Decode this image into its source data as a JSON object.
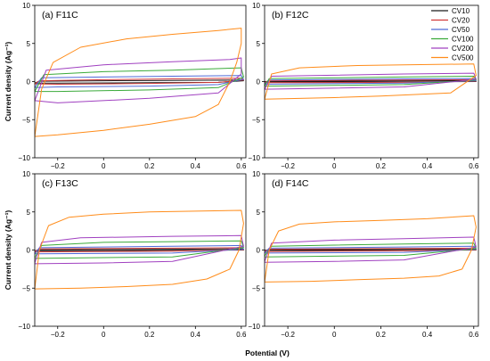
{
  "figure": {
    "xlabel": "Potential (V)",
    "ylabel": "Current density (Ag⁻¹)"
  },
  "legend": {
    "position": "top-right",
    "entries": [
      {
        "name": "CV10",
        "color": "#1a1a1a"
      },
      {
        "name": "CV20",
        "color": "#d23b3b"
      },
      {
        "name": "CV50",
        "color": "#4f6ad8"
      },
      {
        "name": "CV100",
        "color": "#3aaa3a"
      },
      {
        "name": "CV200",
        "color": "#a040c0"
      },
      {
        "name": "CV500",
        "color": "#ff8c1a"
      }
    ]
  },
  "chart_data": [
    {
      "type": "line",
      "title": "(a) F11C",
      "xlabel": "",
      "ylabel": "Current density (Ag⁻¹)",
      "xlim": [
        -0.3,
        0.62
      ],
      "ylim": [
        -10,
        10
      ],
      "xticks": [
        "-0.2",
        "0",
        "0.2",
        "0.4",
        "0.6"
      ],
      "yticks": [
        "-10",
        "-5",
        "0",
        "5",
        "10"
      ],
      "series": [
        {
          "name": "CV10",
          "loop": [
            [
              -0.3,
              -0.2
            ],
            [
              -0.28,
              0.05
            ],
            [
              0.0,
              0.1
            ],
            [
              0.3,
              0.15
            ],
            [
              0.6,
              0.2
            ],
            [
              0.61,
              0.1
            ],
            [
              0.5,
              -0.1
            ],
            [
              0.2,
              -0.15
            ],
            [
              -0.2,
              -0.2
            ]
          ]
        },
        {
          "name": "CV20",
          "loop": [
            [
              -0.3,
              -0.3
            ],
            [
              -0.28,
              0.1
            ],
            [
              0.0,
              0.25
            ],
            [
              0.3,
              0.35
            ],
            [
              0.6,
              0.45
            ],
            [
              0.61,
              0.2
            ],
            [
              0.5,
              -0.1
            ],
            [
              0.2,
              -0.25
            ],
            [
              -0.2,
              -0.35
            ]
          ]
        },
        {
          "name": "CV50",
          "loop": [
            [
              -0.3,
              -0.8
            ],
            [
              -0.27,
              0.5
            ],
            [
              0.0,
              0.6
            ],
            [
              0.3,
              0.7
            ],
            [
              0.6,
              0.8
            ],
            [
              0.61,
              0.3
            ],
            [
              0.5,
              -0.4
            ],
            [
              0.2,
              -0.6
            ],
            [
              -0.2,
              -0.7
            ]
          ]
        },
        {
          "name": "CV100",
          "loop": [
            [
              -0.3,
              -1.3
            ],
            [
              -0.26,
              0.9
            ],
            [
              0.0,
              1.3
            ],
            [
              0.3,
              1.5
            ],
            [
              0.6,
              1.8
            ],
            [
              0.61,
              0.6
            ],
            [
              0.5,
              -0.8
            ],
            [
              0.2,
              -1.1
            ],
            [
              -0.2,
              -1.3
            ]
          ]
        },
        {
          "name": "CV200",
          "loop": [
            [
              -0.3,
              -2.5
            ],
            [
              -0.25,
              1.5
            ],
            [
              0.0,
              2.2
            ],
            [
              0.3,
              2.6
            ],
            [
              0.55,
              2.9
            ],
            [
              0.6,
              3.1
            ],
            [
              0.6,
              1.0
            ],
            [
              0.5,
              -1.5
            ],
            [
              0.2,
              -2.2
            ],
            [
              -0.2,
              -2.8
            ]
          ]
        },
        {
          "name": "CV500",
          "loop": [
            [
              -0.3,
              -7.2
            ],
            [
              -0.27,
              -1.0
            ],
            [
              -0.22,
              2.5
            ],
            [
              -0.1,
              4.5
            ],
            [
              0.1,
              5.6
            ],
            [
              0.3,
              6.2
            ],
            [
              0.5,
              6.7
            ],
            [
              0.6,
              7.0
            ],
            [
              0.6,
              5.0
            ],
            [
              0.58,
              2.5
            ],
            [
              0.55,
              0.0
            ],
            [
              0.5,
              -3.0
            ],
            [
              0.4,
              -4.6
            ],
            [
              0.2,
              -5.6
            ],
            [
              0.0,
              -6.4
            ],
            [
              -0.2,
              -7.0
            ],
            [
              -0.3,
              -7.2
            ]
          ]
        }
      ]
    },
    {
      "type": "line",
      "title": "(b) F12C",
      "xlabel": "",
      "ylabel": "",
      "xlim": [
        -0.3,
        0.62
      ],
      "ylim": [
        -10,
        10
      ],
      "xticks": [
        "-0.2",
        "0",
        "0.2",
        "0.4",
        "0.6"
      ],
      "yticks": [
        "-10",
        "-5",
        "0",
        "5",
        "10"
      ],
      "series": [
        {
          "name": "CV10",
          "loop": [
            [
              -0.3,
              0.0
            ],
            [
              -0.28,
              0.05
            ],
            [
              0.3,
              0.1
            ],
            [
              0.6,
              0.12
            ],
            [
              0.61,
              0.0
            ],
            [
              0.3,
              -0.05
            ],
            [
              -0.3,
              -0.05
            ]
          ]
        },
        {
          "name": "CV20",
          "loop": [
            [
              -0.3,
              -0.1
            ],
            [
              -0.28,
              0.1
            ],
            [
              0.3,
              0.2
            ],
            [
              0.6,
              0.25
            ],
            [
              0.61,
              0.05
            ],
            [
              0.3,
              -0.1
            ],
            [
              -0.3,
              -0.15
            ]
          ]
        },
        {
          "name": "CV50",
          "loop": [
            [
              -0.3,
              -0.3
            ],
            [
              -0.28,
              0.2
            ],
            [
              0.3,
              0.35
            ],
            [
              0.6,
              0.4
            ],
            [
              0.61,
              0.1
            ],
            [
              0.3,
              -0.2
            ],
            [
              -0.3,
              -0.35
            ]
          ]
        },
        {
          "name": "CV100",
          "loop": [
            [
              -0.3,
              -0.6
            ],
            [
              -0.28,
              0.4
            ],
            [
              0.3,
              0.6
            ],
            [
              0.6,
              0.7
            ],
            [
              0.61,
              0.2
            ],
            [
              0.3,
              -0.4
            ],
            [
              -0.3,
              -0.6
            ]
          ]
        },
        {
          "name": "CV200",
          "loop": [
            [
              -0.3,
              -1.0
            ],
            [
              -0.27,
              0.7
            ],
            [
              0.3,
              1.0
            ],
            [
              0.6,
              1.1
            ],
            [
              0.61,
              0.3
            ],
            [
              0.3,
              -0.7
            ],
            [
              -0.3,
              -1.0
            ]
          ]
        },
        {
          "name": "CV500",
          "loop": [
            [
              -0.3,
              -2.3
            ],
            [
              -0.27,
              1.0
            ],
            [
              -0.15,
              1.8
            ],
            [
              0.1,
              2.1
            ],
            [
              0.3,
              2.2
            ],
            [
              0.6,
              2.3
            ],
            [
              0.61,
              0.8
            ],
            [
              0.5,
              -1.5
            ],
            [
              0.2,
              -1.9
            ],
            [
              0.0,
              -2.1
            ],
            [
              -0.3,
              -2.3
            ]
          ]
        }
      ]
    },
    {
      "type": "line",
      "title": "(c) F13C",
      "xlabel": "",
      "ylabel": "Current density (Ag⁻¹)",
      "xlim": [
        -0.3,
        0.62
      ],
      "ylim": [
        -10,
        10
      ],
      "xticks": [
        "-0.2",
        "0",
        "0.2",
        "0.4",
        "0.6"
      ],
      "yticks": [
        "-10",
        "-5",
        "0",
        "5",
        "10"
      ],
      "series": [
        {
          "name": "CV10",
          "loop": [
            [
              -0.3,
              -0.1
            ],
            [
              -0.28,
              0.05
            ],
            [
              0.3,
              0.1
            ],
            [
              0.6,
              0.15
            ],
            [
              0.61,
              0.0
            ],
            [
              0.3,
              -0.05
            ],
            [
              -0.3,
              -0.1
            ]
          ]
        },
        {
          "name": "CV20",
          "loop": [
            [
              -0.3,
              -0.2
            ],
            [
              -0.28,
              0.15
            ],
            [
              0.3,
              0.25
            ],
            [
              0.6,
              0.3
            ],
            [
              0.61,
              0.05
            ],
            [
              0.3,
              -0.15
            ],
            [
              -0.3,
              -0.25
            ]
          ]
        },
        {
          "name": "CV50",
          "loop": [
            [
              -0.3,
              -0.5
            ],
            [
              -0.28,
              0.3
            ],
            [
              0.3,
              0.5
            ],
            [
              0.6,
              0.6
            ],
            [
              0.61,
              0.1
            ],
            [
              0.3,
              -0.4
            ],
            [
              -0.3,
              -0.5
            ]
          ]
        },
        {
          "name": "CV100",
          "loop": [
            [
              -0.3,
              -1.0
            ],
            [
              -0.27,
              0.6
            ],
            [
              0.0,
              1.0
            ],
            [
              0.3,
              1.1
            ],
            [
              0.6,
              1.2
            ],
            [
              0.61,
              0.3
            ],
            [
              0.3,
              -0.9
            ],
            [
              -0.3,
              -1.1
            ]
          ]
        },
        {
          "name": "CV200",
          "loop": [
            [
              -0.3,
              -1.7
            ],
            [
              -0.27,
              1.0
            ],
            [
              -0.1,
              1.6
            ],
            [
              0.3,
              1.8
            ],
            [
              0.6,
              1.9
            ],
            [
              0.61,
              0.5
            ],
            [
              0.3,
              -1.5
            ],
            [
              0.0,
              -1.7
            ],
            [
              -0.3,
              -1.8
            ]
          ]
        },
        {
          "name": "CV500",
          "loop": [
            [
              -0.3,
              -5.1
            ],
            [
              -0.28,
              0.0
            ],
            [
              -0.24,
              3.2
            ],
            [
              -0.15,
              4.3
            ],
            [
              0.0,
              4.7
            ],
            [
              0.2,
              5.0
            ],
            [
              0.4,
              5.1
            ],
            [
              0.6,
              5.2
            ],
            [
              0.61,
              3.5
            ],
            [
              0.59,
              0.0
            ],
            [
              0.55,
              -2.5
            ],
            [
              0.45,
              -3.8
            ],
            [
              0.3,
              -4.5
            ],
            [
              0.1,
              -4.8
            ],
            [
              -0.1,
              -5.0
            ],
            [
              -0.3,
              -5.1
            ]
          ]
        }
      ]
    },
    {
      "type": "line",
      "title": "(d) F14C",
      "xlabel": "",
      "ylabel": "",
      "xlim": [
        -0.3,
        0.62
      ],
      "ylim": [
        -10,
        10
      ],
      "xticks": [
        "-0.2",
        "0",
        "0.2",
        "0.4",
        "0.6"
      ],
      "yticks": [
        "-10",
        "-5",
        "0",
        "5",
        "10"
      ],
      "series": [
        {
          "name": "CV10",
          "loop": [
            [
              -0.3,
              -0.05
            ],
            [
              -0.28,
              0.05
            ],
            [
              0.3,
              0.1
            ],
            [
              0.6,
              0.1
            ],
            [
              0.61,
              0.0
            ],
            [
              0.3,
              -0.05
            ],
            [
              -0.3,
              -0.05
            ]
          ]
        },
        {
          "name": "CV20",
          "loop": [
            [
              -0.3,
              -0.15
            ],
            [
              -0.28,
              0.1
            ],
            [
              0.3,
              0.2
            ],
            [
              0.6,
              0.25
            ],
            [
              0.61,
              0.05
            ],
            [
              0.3,
              -0.1
            ],
            [
              -0.3,
              -0.2
            ]
          ]
        },
        {
          "name": "CV50",
          "loop": [
            [
              -0.3,
              -0.4
            ],
            [
              -0.28,
              0.25
            ],
            [
              0.3,
              0.4
            ],
            [
              0.6,
              0.5
            ],
            [
              0.61,
              0.1
            ],
            [
              0.3,
              -0.3
            ],
            [
              -0.3,
              -0.4
            ]
          ]
        },
        {
          "name": "CV100",
          "loop": [
            [
              -0.3,
              -0.8
            ],
            [
              -0.27,
              0.5
            ],
            [
              0.3,
              0.8
            ],
            [
              0.6,
              0.9
            ],
            [
              0.61,
              0.2
            ],
            [
              0.3,
              -0.7
            ],
            [
              -0.3,
              -0.9
            ]
          ]
        },
        {
          "name": "CV200",
          "loop": [
            [
              -0.3,
              -1.5
            ],
            [
              -0.27,
              0.9
            ],
            [
              0.0,
              1.3
            ],
            [
              0.3,
              1.5
            ],
            [
              0.6,
              1.7
            ],
            [
              0.61,
              0.4
            ],
            [
              0.3,
              -1.3
            ],
            [
              0.0,
              -1.5
            ],
            [
              -0.3,
              -1.6
            ]
          ]
        },
        {
          "name": "CV500",
          "loop": [
            [
              -0.3,
              -4.2
            ],
            [
              -0.28,
              0.0
            ],
            [
              -0.24,
              2.5
            ],
            [
              -0.15,
              3.4
            ],
            [
              0.0,
              3.7
            ],
            [
              0.2,
              3.9
            ],
            [
              0.4,
              4.1
            ],
            [
              0.6,
              4.5
            ],
            [
              0.61,
              3.0
            ],
            [
              0.59,
              0.0
            ],
            [
              0.55,
              -2.5
            ],
            [
              0.45,
              -3.4
            ],
            [
              0.3,
              -3.7
            ],
            [
              0.1,
              -3.9
            ],
            [
              -0.1,
              -4.1
            ],
            [
              -0.3,
              -4.2
            ]
          ]
        }
      ]
    }
  ]
}
